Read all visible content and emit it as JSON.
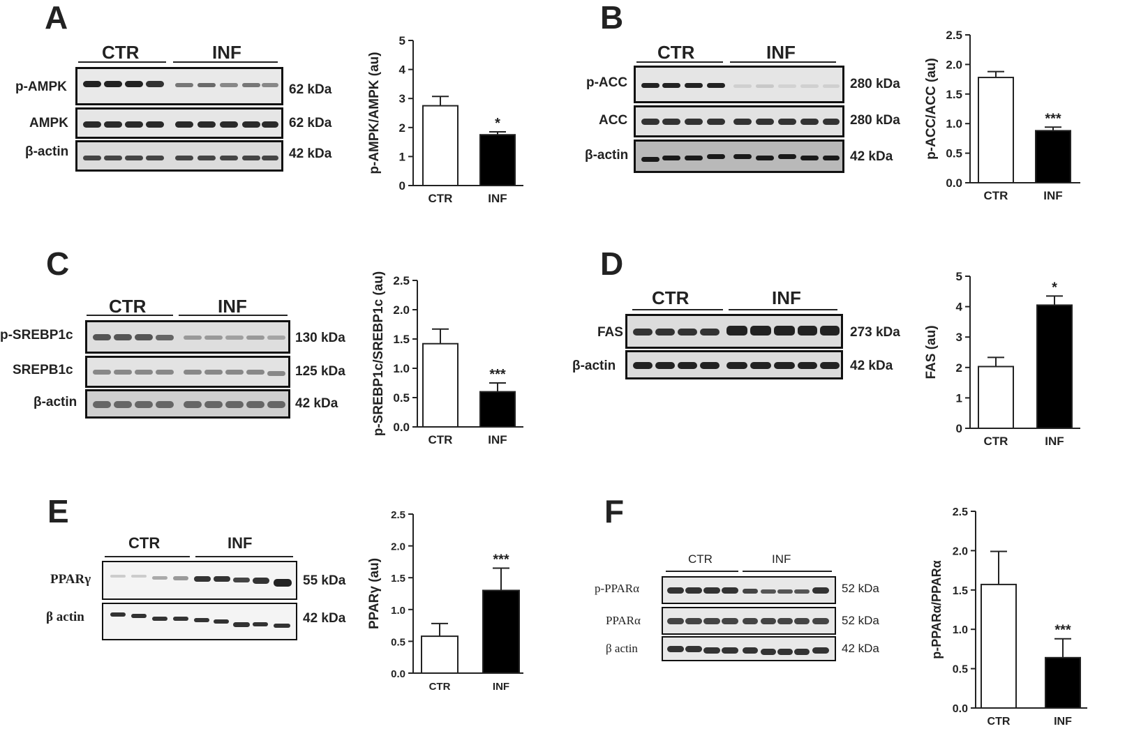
{
  "panels": [
    {
      "letter": "A",
      "groups": [
        "CTR",
        "INF"
      ],
      "blots": [
        {
          "name": "p-AMPK",
          "kda": "62 kDa"
        },
        {
          "name": "AMPK",
          "kda": "62 kDa"
        },
        {
          "name": "β-actin",
          "kda": "42 kDa"
        }
      ]
    },
    {
      "letter": "B",
      "groups": [
        "CTR",
        "INF"
      ],
      "blots": [
        {
          "name": "p-ACC",
          "kda": "280 kDa"
        },
        {
          "name": "ACC",
          "kda": "280 kDa"
        },
        {
          "name": "β-actin",
          "kda": "42 kDa"
        }
      ]
    },
    {
      "letter": "C",
      "groups": [
        "CTR",
        "INF"
      ],
      "blots": [
        {
          "name": "p-SREBP1c",
          "kda": "130 kDa"
        },
        {
          "name": "SREPB1c",
          "kda": "125 kDa"
        },
        {
          "name": "β-actin",
          "kda": "42 kDa"
        }
      ]
    },
    {
      "letter": "D",
      "groups": [
        "CTR",
        "INF"
      ],
      "blots": [
        {
          "name": "FAS",
          "kda": "273 kDa"
        },
        {
          "name": "β-actin",
          "kda": "42 kDa"
        }
      ]
    },
    {
      "letter": "E",
      "groups": [
        "CTR",
        "INF"
      ],
      "blots": [
        {
          "name": "PPARγ",
          "kda": "55 kDa"
        },
        {
          "name": "β actin",
          "kda": "42 kDa"
        }
      ]
    },
    {
      "letter": "F",
      "groups": [
        "CTR",
        "INF"
      ],
      "blots": [
        {
          "name": "p-PPARα",
          "kda": "52 kDa"
        },
        {
          "name": "PPARα",
          "kda": "52 kDa"
        },
        {
          "name": "β actin",
          "kda": "42 kDa"
        }
      ]
    }
  ],
  "chart_data": [
    {
      "panel": "A",
      "type": "bar",
      "categories": [
        "CTR",
        "INF"
      ],
      "values": [
        2.75,
        1.75
      ],
      "errors": [
        0.32,
        0.1
      ],
      "fills": [
        "#ffffff",
        "#000000"
      ],
      "significance": [
        "",
        "*"
      ],
      "ylabel": "p-AMPK/AMPK (au)",
      "ylim": [
        0,
        5
      ],
      "yticks": [
        "0",
        "1",
        "2",
        "3",
        "4",
        "5"
      ]
    },
    {
      "panel": "B",
      "type": "bar",
      "categories": [
        "CTR",
        "INF"
      ],
      "values": [
        1.78,
        0.88
      ],
      "errors": [
        0.1,
        0.06
      ],
      "fills": [
        "#ffffff",
        "#000000"
      ],
      "significance": [
        "",
        "***"
      ],
      "ylabel": "p-ACC/ACC (au)",
      "ylim": [
        0,
        2.5
      ],
      "yticks": [
        "0.0",
        "0.5",
        "1.0",
        "1.5",
        "2.0",
        "2.5"
      ]
    },
    {
      "panel": "C",
      "type": "bar",
      "categories": [
        "CTR",
        "INF"
      ],
      "values": [
        1.42,
        0.6
      ],
      "errors": [
        0.25,
        0.15
      ],
      "fills": [
        "#ffffff",
        "#000000"
      ],
      "significance": [
        "",
        "***"
      ],
      "ylabel": "p-SREBP1c/SREBP1c (au)",
      "ylim": [
        0,
        2.5
      ],
      "yticks": [
        "0.0",
        "0.5",
        "1.0",
        "1.5",
        "2.0",
        "2.5"
      ]
    },
    {
      "panel": "D",
      "type": "bar",
      "categories": [
        "CTR",
        "INF"
      ],
      "values": [
        2.03,
        4.05
      ],
      "errors": [
        0.3,
        0.3
      ],
      "fills": [
        "#ffffff",
        "#000000"
      ],
      "significance": [
        "",
        "*"
      ],
      "ylabel": "FAS (au)",
      "ylim": [
        0,
        5
      ],
      "yticks": [
        "0",
        "1",
        "2",
        "3",
        "4",
        "5"
      ]
    },
    {
      "panel": "E",
      "type": "bar",
      "categories": [
        "CTR",
        "INF"
      ],
      "values": [
        0.58,
        1.3
      ],
      "errors": [
        0.2,
        0.35
      ],
      "fills": [
        "#ffffff",
        "#000000"
      ],
      "significance": [
        "",
        "***"
      ],
      "ylabel": "PPARγ (au)",
      "ylim": [
        0,
        2.5
      ],
      "yticks": [
        "0.0",
        "0.5",
        "1.0",
        "1.5",
        "2.0",
        "2.5"
      ]
    },
    {
      "panel": "F",
      "type": "bar",
      "categories": [
        "CTR",
        "INF"
      ],
      "values": [
        1.57,
        0.64
      ],
      "errors": [
        0.42,
        0.24
      ],
      "fills": [
        "#ffffff",
        "#000000"
      ],
      "significance": [
        "",
        "***"
      ],
      "ylabel": "p-PPARα/PPARα",
      "ylim": [
        0,
        2.5
      ],
      "yticks": [
        "0.0",
        "0.5",
        "1.0",
        "1.5",
        "2.0",
        "2.5"
      ]
    }
  ]
}
